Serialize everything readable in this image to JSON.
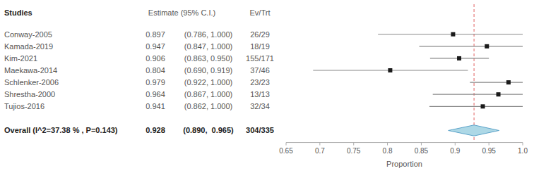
{
  "chart_data": {
    "type": "forest",
    "header_studies": "Studies",
    "header_estimate": "Estimate (95% C.I.)",
    "header_ev_trt": "Ev/Trt",
    "categories": [
      "Conway-2005",
      "Kamada-2019",
      "Kim-2021",
      "Maekawa-2014",
      "Schlenker-2006",
      "Shrestha-2000",
      "Tujios-2016"
    ],
    "values": [
      0.897,
      0.947,
      0.906,
      0.804,
      0.979,
      0.964,
      0.941
    ],
    "ci_lower": [
      0.786,
      0.847,
      0.863,
      0.69,
      0.922,
      0.867,
      0.862
    ],
    "ci_upper": [
      1.0,
      1.0,
      0.95,
      0.919,
      1.0,
      1.0,
      1.0
    ],
    "ci_labels": [
      "(0.786, 1.000)",
      "(0.847, 1.000)",
      "(0.863, 0.950)",
      "(0.690, 0.919)",
      "(0.922, 1.000)",
      "(0.867, 1.000)",
      "(0.862, 1.000)"
    ],
    "ev_trt": [
      "26/29",
      "18/19",
      "155/171",
      "37/46",
      "23/23",
      "13/13",
      "32/34"
    ],
    "data_labels": true,
    "color": "#1a1a1a",
    "overall": {
      "label": "Overall (I^2=37.38 % , P=0.143)",
      "value": 0.928,
      "ci_lower": 0.89,
      "ci_upper": 0.965,
      "ci_label": "(0.890,  0.965)",
      "ev_trt": "304/335",
      "color": "#add8e6"
    },
    "reference_line": {
      "value": 0.928,
      "color": "#e06060"
    },
    "xlabel": "Proportion",
    "xlim": [
      0.65,
      1.0
    ],
    "xticks": [
      0.65,
      0.7,
      0.75,
      0.8,
      0.85,
      0.9,
      0.95,
      {
        "value": 1.0,
        "label": "1.0"
      }
    ]
  }
}
